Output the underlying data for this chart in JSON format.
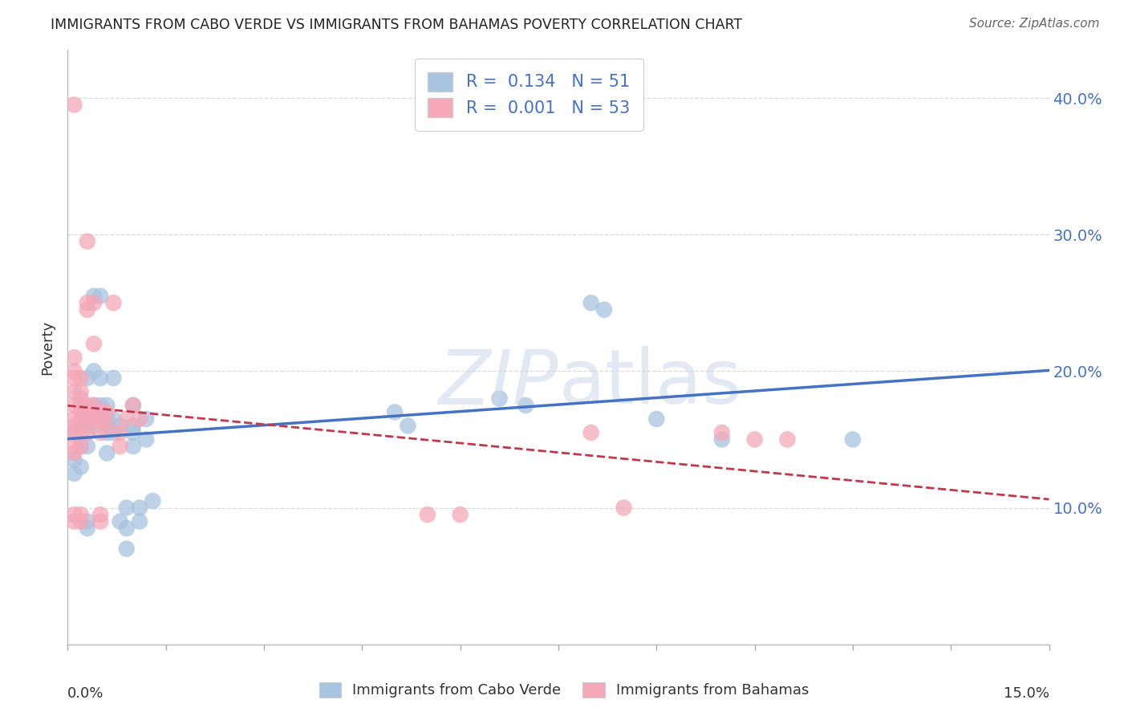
{
  "title": "IMMIGRANTS FROM CABO VERDE VS IMMIGRANTS FROM BAHAMAS POVERTY CORRELATION CHART",
  "source": "Source: ZipAtlas.com",
  "ylabel": "Poverty",
  "y_ticks": [
    0.1,
    0.2,
    0.3,
    0.4
  ],
  "y_tick_labels": [
    "10.0%",
    "20.0%",
    "30.0%",
    "40.0%"
  ],
  "xlim": [
    0.0,
    0.15
  ],
  "ylim": [
    0.0,
    0.435
  ],
  "cabo_verde_color": "#a8c4e0",
  "bahamas_color": "#f4a8b8",
  "cabo_verde_line_color": "#4472c4",
  "bahamas_line_color": "#c0384b",
  "cabo_verde_points": [
    [
      0.001,
      0.155
    ],
    [
      0.001,
      0.135
    ],
    [
      0.001,
      0.125
    ],
    [
      0.002,
      0.175
    ],
    [
      0.002,
      0.16
    ],
    [
      0.002,
      0.145
    ],
    [
      0.002,
      0.13
    ],
    [
      0.003,
      0.195
    ],
    [
      0.003,
      0.16
    ],
    [
      0.003,
      0.145
    ],
    [
      0.003,
      0.09
    ],
    [
      0.003,
      0.085
    ],
    [
      0.004,
      0.255
    ],
    [
      0.004,
      0.2
    ],
    [
      0.004,
      0.175
    ],
    [
      0.004,
      0.17
    ],
    [
      0.004,
      0.16
    ],
    [
      0.005,
      0.255
    ],
    [
      0.005,
      0.195
    ],
    [
      0.005,
      0.175
    ],
    [
      0.005,
      0.165
    ],
    [
      0.006,
      0.175
    ],
    [
      0.006,
      0.165
    ],
    [
      0.006,
      0.155
    ],
    [
      0.006,
      0.14
    ],
    [
      0.007,
      0.195
    ],
    [
      0.007,
      0.165
    ],
    [
      0.007,
      0.155
    ],
    [
      0.008,
      0.16
    ],
    [
      0.008,
      0.09
    ],
    [
      0.009,
      0.1
    ],
    [
      0.009,
      0.085
    ],
    [
      0.009,
      0.07
    ],
    [
      0.01,
      0.175
    ],
    [
      0.01,
      0.16
    ],
    [
      0.01,
      0.155
    ],
    [
      0.01,
      0.145
    ],
    [
      0.011,
      0.1
    ],
    [
      0.011,
      0.09
    ],
    [
      0.012,
      0.165
    ],
    [
      0.012,
      0.15
    ],
    [
      0.013,
      0.105
    ],
    [
      0.05,
      0.17
    ],
    [
      0.052,
      0.16
    ],
    [
      0.066,
      0.18
    ],
    [
      0.07,
      0.175
    ],
    [
      0.08,
      0.25
    ],
    [
      0.082,
      0.245
    ],
    [
      0.09,
      0.165
    ],
    [
      0.1,
      0.15
    ],
    [
      0.12,
      0.15
    ]
  ],
  "bahamas_points": [
    [
      0.001,
      0.395
    ],
    [
      0.001,
      0.21
    ],
    [
      0.001,
      0.2
    ],
    [
      0.001,
      0.195
    ],
    [
      0.001,
      0.185
    ],
    [
      0.001,
      0.175
    ],
    [
      0.001,
      0.165
    ],
    [
      0.001,
      0.16
    ],
    [
      0.001,
      0.155
    ],
    [
      0.001,
      0.145
    ],
    [
      0.001,
      0.14
    ],
    [
      0.001,
      0.095
    ],
    [
      0.001,
      0.09
    ],
    [
      0.002,
      0.195
    ],
    [
      0.002,
      0.185
    ],
    [
      0.002,
      0.18
    ],
    [
      0.002,
      0.17
    ],
    [
      0.002,
      0.165
    ],
    [
      0.002,
      0.155
    ],
    [
      0.002,
      0.145
    ],
    [
      0.002,
      0.095
    ],
    [
      0.002,
      0.09
    ],
    [
      0.003,
      0.295
    ],
    [
      0.003,
      0.25
    ],
    [
      0.003,
      0.245
    ],
    [
      0.003,
      0.175
    ],
    [
      0.003,
      0.165
    ],
    [
      0.003,
      0.155
    ],
    [
      0.004,
      0.25
    ],
    [
      0.004,
      0.22
    ],
    [
      0.004,
      0.175
    ],
    [
      0.004,
      0.165
    ],
    [
      0.005,
      0.17
    ],
    [
      0.005,
      0.165
    ],
    [
      0.005,
      0.155
    ],
    [
      0.005,
      0.095
    ],
    [
      0.005,
      0.09
    ],
    [
      0.006,
      0.17
    ],
    [
      0.006,
      0.16
    ],
    [
      0.007,
      0.25
    ],
    [
      0.008,
      0.155
    ],
    [
      0.008,
      0.145
    ],
    [
      0.009,
      0.165
    ],
    [
      0.01,
      0.175
    ],
    [
      0.011,
      0.165
    ],
    [
      0.055,
      0.095
    ],
    [
      0.06,
      0.095
    ],
    [
      0.08,
      0.155
    ],
    [
      0.085,
      0.1
    ],
    [
      0.1,
      0.155
    ],
    [
      0.105,
      0.15
    ],
    [
      0.11,
      0.15
    ]
  ],
  "watermark_zip": "ZIP",
  "watermark_atlas": "atlas",
  "background_color": "#ffffff",
  "grid_color": "#d0d0d0"
}
